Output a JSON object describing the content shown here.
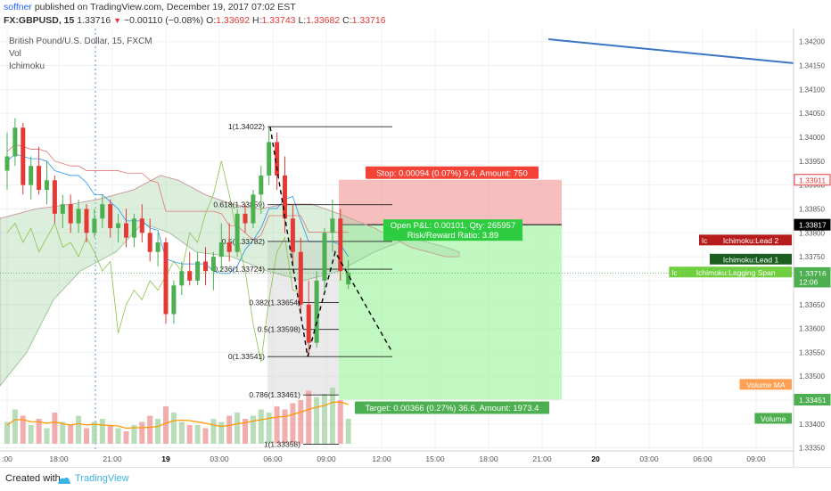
{
  "header": {
    "author": "soffner",
    "published": "published on TradingView.com, December 19, 2017 07:02 EST",
    "symbol": "FX:GBPUSD, 15",
    "price": "1.33716",
    "change": "−0.00110 (−0.08%)",
    "o_label": "O:",
    "o_val": "1.33692",
    "h_label": "H:",
    "h_val": "1.33743",
    "l_label": "L:",
    "l_val": "1.33682",
    "c_label": "C:",
    "c_val": "1.33716"
  },
  "legend": {
    "title": "British Pound/U.S. Dollar, 15, FXCM",
    "vol": "Vol",
    "ichimoku": "Ichimoku"
  },
  "footer": {
    "created_with": "Created with",
    "brand": "TradingView"
  },
  "colors": {
    "up": "#4caf50",
    "down": "#e53935",
    "tenkan": "#2196f3",
    "kijun": "#e57373",
    "lagging": "#8bc34a",
    "cloud_up": "#a5d6a7",
    "cloud_down": "#ef9a9a",
    "trendline": "#3a75c4",
    "stop_zone": "#f4a3a3",
    "target_zone": "#9ff49f",
    "volume_ma": "#ff9800"
  },
  "chart_data": {
    "type": "candlestick",
    "ylim": [
      1.33355,
      1.3422
    ],
    "y_ticks": [
      "1.34200",
      "1.34150",
      "1.34100",
      "1.34050",
      "1.34000",
      "1.33950",
      "1.33900",
      "1.33850",
      "1.33800",
      "1.33750",
      "1.33700",
      "1.33650",
      "1.33600",
      "1.33550",
      "1.33500",
      "1.33450",
      "1.33400",
      "1.33350"
    ],
    "x_ticks": [
      ":00",
      "18:00",
      "21:00",
      "19",
      "03:00",
      "06:00",
      "09:00",
      "12:00",
      "15:00",
      "18:00",
      "21:00",
      "20",
      "03:00",
      "06:00",
      "09:00"
    ],
    "trendline": [
      1.34205,
      1.34155
    ],
    "fibonacci": [
      {
        "label": "1(1.34022)",
        "value": 1.34022
      },
      {
        "label": "0.618(1.33859)",
        "value": 1.33859
      },
      {
        "label": "0.5(1.33782)",
        "value": 1.33782
      },
      {
        "label": "0.236(1.33724)",
        "value": 1.33724
      },
      {
        "label": "0.382(1.33654)",
        "value": 1.33654
      },
      {
        "label": "0.5(1.33598)",
        "value": 1.33598
      },
      {
        "label": "0(1.33541)",
        "value": 1.33541
      },
      {
        "label": "0.786(1.33461)",
        "value": 1.33461
      },
      {
        "label": "1(1.33358)",
        "value": 1.33358
      }
    ],
    "position": {
      "entry": 1.33817,
      "stop": 1.33911,
      "target": 1.33451,
      "stop_label": "Stop: 0.00094 (0.07%) 9.4, Amount: 750",
      "target_label": "Target: 0.00366 (0.27%) 36.6, Amount: 1973.4",
      "pl_label": "Open P&L: 0.00101, Qty: 265957",
      "rr_label": "Risk/Reward Ratio: 3.89"
    },
    "axis_tags": [
      {
        "text": "1.33911",
        "value": 1.33911,
        "bg": "#ffffff",
        "fg": "#e53935",
        "border": "#e53935"
      },
      {
        "text": "1.33817",
        "value": 1.33817,
        "bg": "#000000",
        "fg": "#ffffff",
        "border": "#000000"
      },
      {
        "text": "1.33716",
        "value": 1.33716,
        "bg": "#4caf50",
        "fg": "#ffffff",
        "border": "#4caf50"
      },
      {
        "text": "12:06",
        "value": 1.33698,
        "bg": "#4caf50",
        "fg": "#ffffff",
        "border": "#4caf50"
      },
      {
        "text": "1.33451",
        "value": 1.33451,
        "bg": "#4caf50",
        "fg": "#ffffff",
        "border": "#4caf50"
      }
    ],
    "series_labels": [
      {
        "text": "Ichimoku:Lead 2",
        "value": 1.33785,
        "bg": "#b71c1c",
        "prefix": "Ic"
      },
      {
        "text": "Ichimoku:Lead 1",
        "value": 1.33745,
        "bg": "#1b5e20",
        "prefix": ""
      },
      {
        "text": "Ichimoku:Lagging Span",
        "value": 1.33718,
        "bg": "#6fcf3f",
        "prefix": "Ic"
      },
      {
        "text": "Volume MA",
        "value": 1.33483,
        "bg": "#ffa052",
        "prefix": ""
      },
      {
        "text": "Volume",
        "value": 1.33412,
        "bg": "#4caf50",
        "prefix": ""
      }
    ],
    "candles": [
      [
        1.3393,
        1.3401,
        1.3389,
        1.3396
      ],
      [
        1.3396,
        1.3404,
        1.3394,
        1.3402
      ],
      [
        1.3402,
        1.3403,
        1.3388,
        1.339
      ],
      [
        1.339,
        1.3396,
        1.3387,
        1.3394
      ],
      [
        1.3394,
        1.3398,
        1.3388,
        1.3389
      ],
      [
        1.3389,
        1.3395,
        1.3386,
        1.3391
      ],
      [
        1.3391,
        1.3392,
        1.3382,
        1.3384
      ],
      [
        1.3384,
        1.3388,
        1.3381,
        1.3386
      ],
      [
        1.3386,
        1.3388,
        1.338,
        1.3382
      ],
      [
        1.3382,
        1.3387,
        1.338,
        1.3385
      ],
      [
        1.3385,
        1.3386,
        1.3378,
        1.338
      ],
      [
        1.338,
        1.3385,
        1.3379,
        1.3383
      ],
      [
        1.3383,
        1.3388,
        1.3381,
        1.3386
      ],
      [
        1.3386,
        1.3387,
        1.3379,
        1.3381
      ],
      [
        1.3381,
        1.3384,
        1.3378,
        1.3382
      ],
      [
        1.3382,
        1.3385,
        1.3377,
        1.3379
      ],
      [
        1.3379,
        1.3384,
        1.3377,
        1.3383
      ],
      [
        1.3383,
        1.3386,
        1.3378,
        1.338
      ],
      [
        1.338,
        1.3383,
        1.3374,
        1.3376
      ],
      [
        1.3376,
        1.338,
        1.3373,
        1.3378
      ],
      [
        1.3378,
        1.3379,
        1.3361,
        1.3363
      ],
      [
        1.3363,
        1.337,
        1.3361,
        1.3369
      ],
      [
        1.3369,
        1.3374,
        1.3367,
        1.3372
      ],
      [
        1.3372,
        1.3376,
        1.3369,
        1.337
      ],
      [
        1.337,
        1.3376,
        1.3369,
        1.3374
      ],
      [
        1.3374,
        1.3377,
        1.3369,
        1.3372
      ],
      [
        1.3372,
        1.3376,
        1.3368,
        1.3375
      ],
      [
        1.3375,
        1.3382,
        1.3372,
        1.3378
      ],
      [
        1.3378,
        1.3382,
        1.3374,
        1.3376
      ],
      [
        1.3376,
        1.3385,
        1.3375,
        1.3384
      ],
      [
        1.3384,
        1.3386,
        1.338,
        1.3382
      ],
      [
        1.3382,
        1.3389,
        1.3381,
        1.3388
      ],
      [
        1.3388,
        1.3394,
        1.3384,
        1.3392
      ],
      [
        1.3392,
        1.34022,
        1.339,
        1.3399
      ],
      [
        1.3399,
        1.3401,
        1.3389,
        1.3392
      ],
      [
        1.3392,
        1.3396,
        1.338,
        1.3383
      ],
      [
        1.3383,
        1.3386,
        1.3373,
        1.3376
      ],
      [
        1.3376,
        1.3379,
        1.3363,
        1.3365
      ],
      [
        1.3365,
        1.337,
        1.33541,
        1.3357
      ],
      [
        1.3357,
        1.3372,
        1.3356,
        1.337
      ],
      [
        1.337,
        1.3381,
        1.3368,
        1.338
      ],
      [
        1.338,
        1.3387,
        1.3376,
        1.3383
      ],
      [
        1.3383,
        1.3385,
        1.337,
        1.3372
      ],
      [
        1.33692,
        1.33743,
        1.33682,
        1.33716
      ]
    ],
    "volumes": [
      0.35,
      0.55,
      0.45,
      0.3,
      0.4,
      0.25,
      0.5,
      0.35,
      0.3,
      0.45,
      0.25,
      0.35,
      0.4,
      0.3,
      0.25,
      0.2,
      0.3,
      0.35,
      0.45,
      0.4,
      0.6,
      0.5,
      0.35,
      0.3,
      0.3,
      0.25,
      0.4,
      0.35,
      0.45,
      0.5,
      0.4,
      0.45,
      0.55,
      0.5,
      0.6,
      0.55,
      0.65,
      0.7,
      0.85,
      0.75,
      0.8,
      0.9,
      0.7,
      0.4
    ]
  }
}
